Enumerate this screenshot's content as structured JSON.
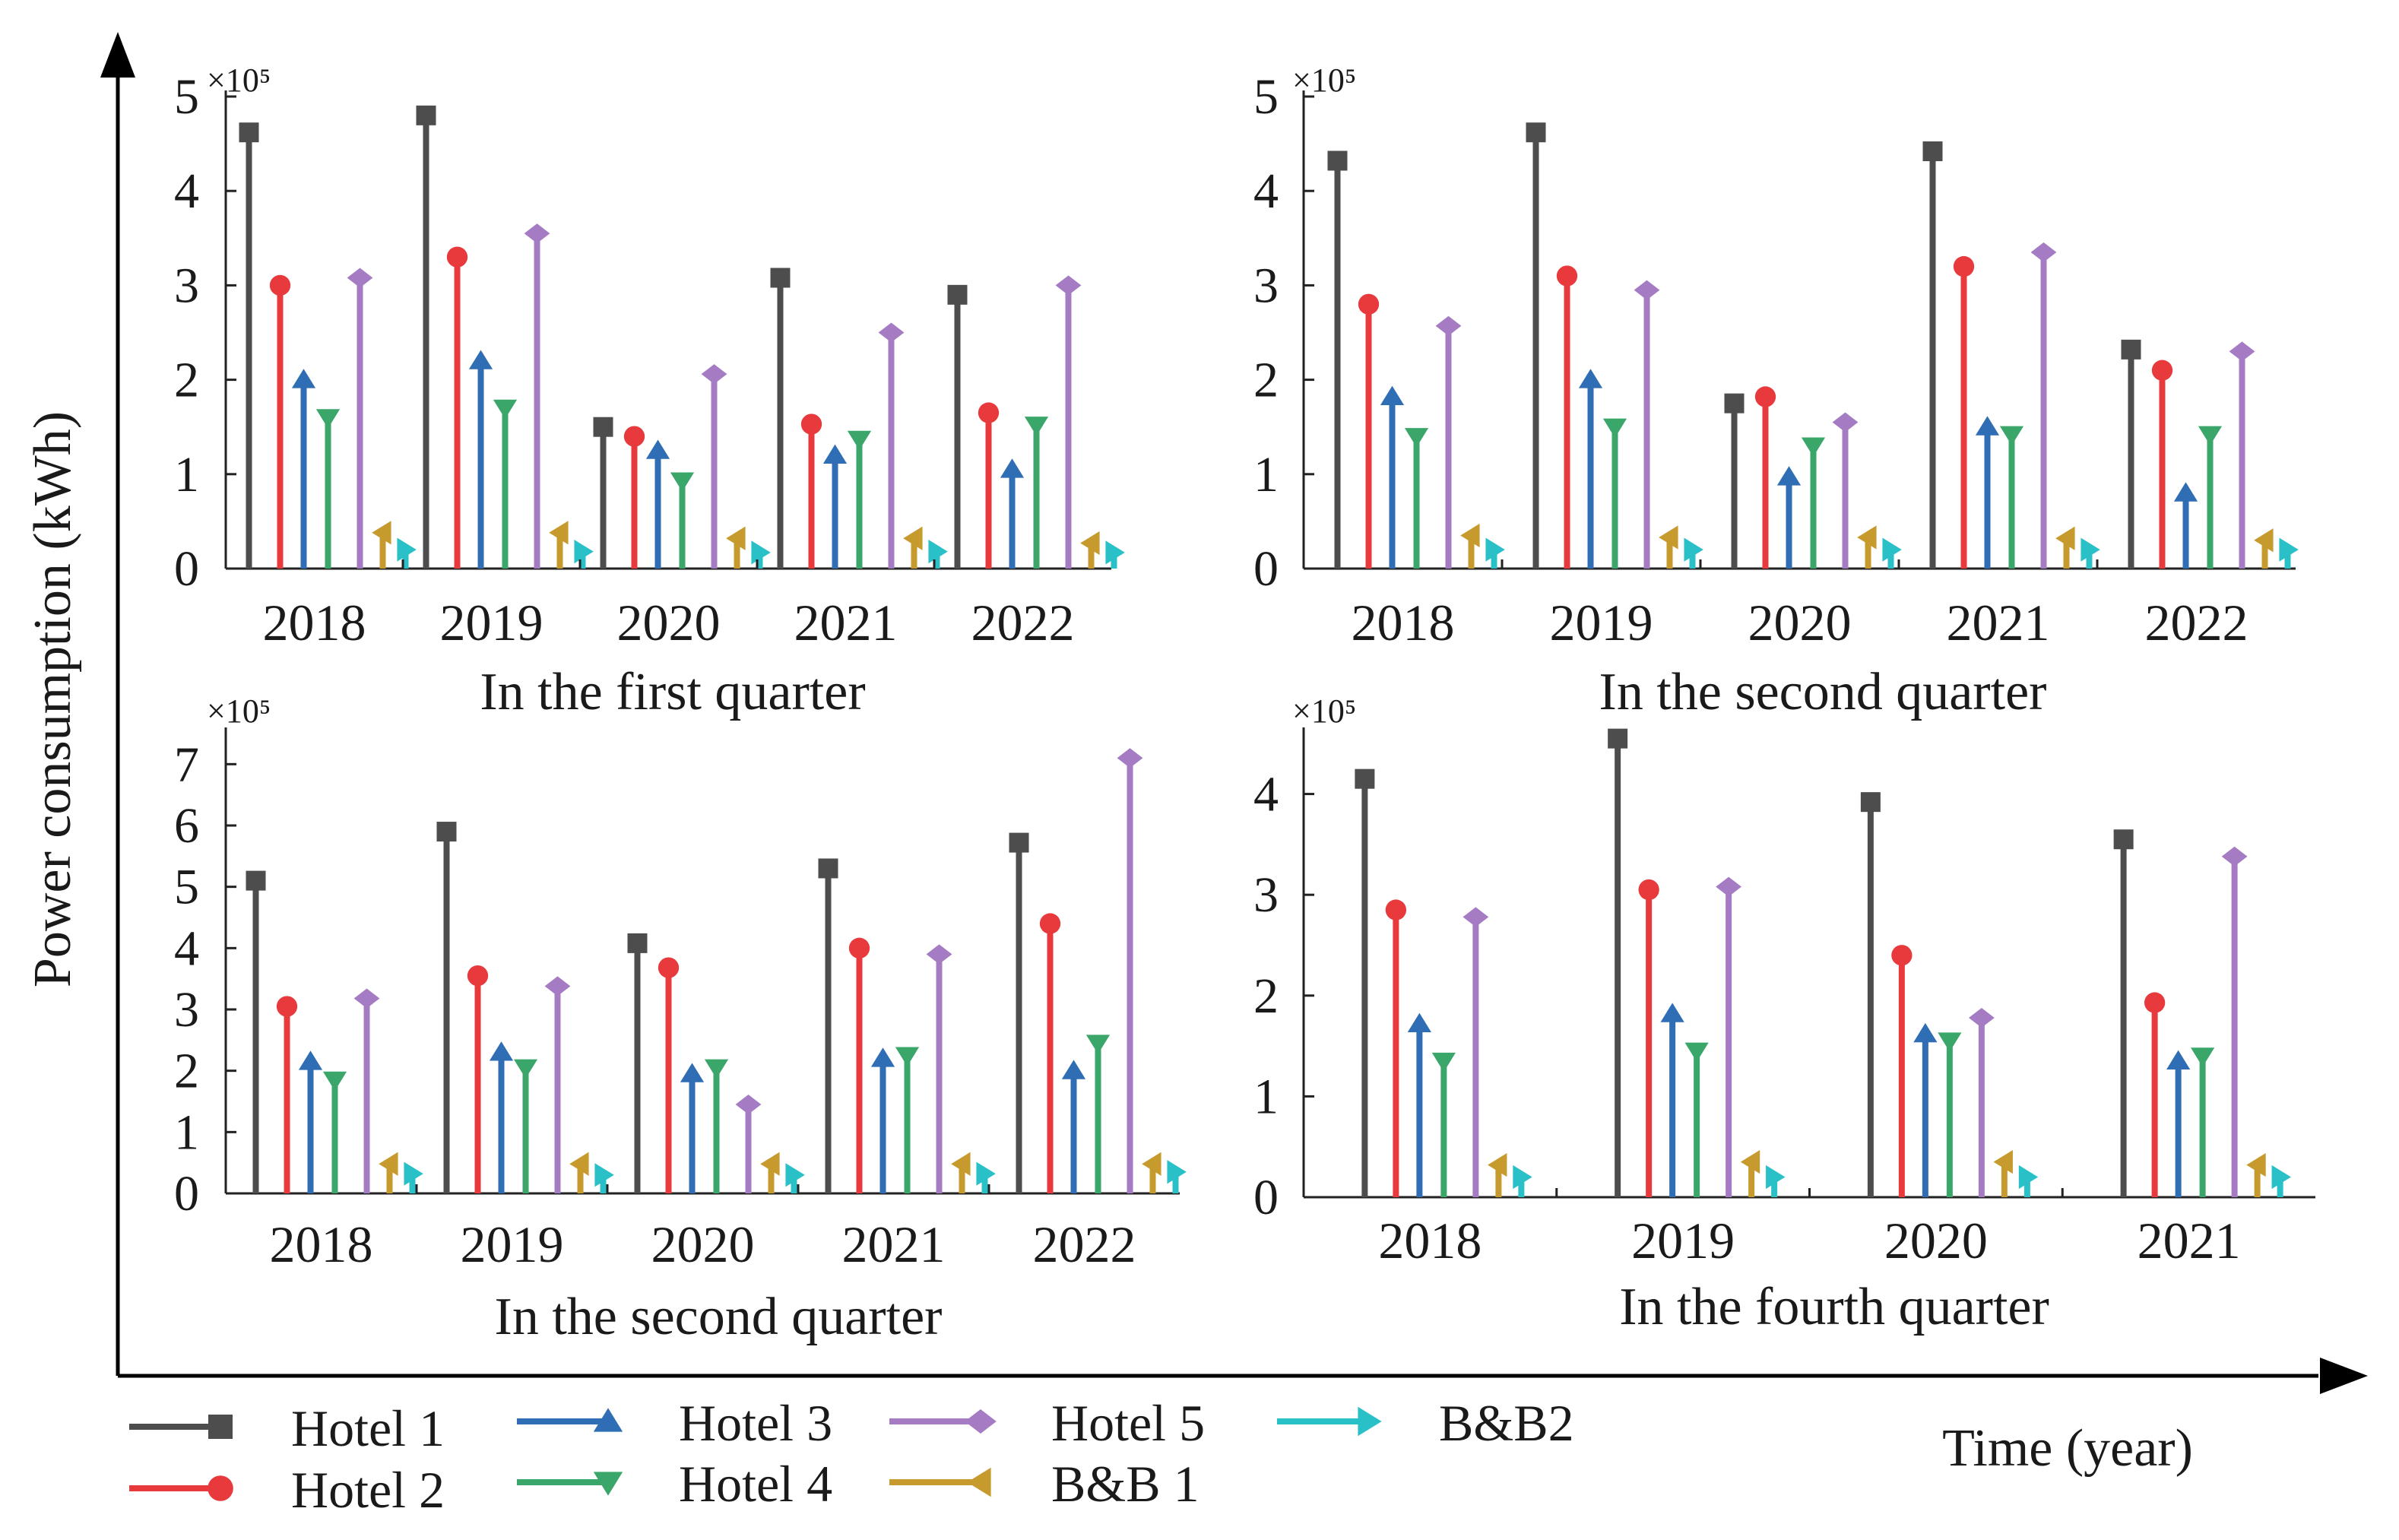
{
  "figure": {
    "y_axis_title": "Power consumption (kWh)",
    "x_axis_title": "Time (year)"
  },
  "legend": [
    {
      "name": "Hotel 1",
      "color": "#4d4d4d",
      "marker": "square-icon"
    },
    {
      "name": "Hotel 2",
      "color": "#e8393c",
      "marker": "circle-icon"
    },
    {
      "name": "Hotel 3",
      "color": "#2f6db5",
      "marker": "triangle-up-icon"
    },
    {
      "name": "Hotel 4",
      "color": "#3aa66a",
      "marker": "triangle-down-icon"
    },
    {
      "name": "Hotel 5",
      "color": "#a57cc4",
      "marker": "diamond-icon"
    },
    {
      "name": "B&B 1",
      "color": "#c79a2e",
      "marker": "triangle-left-icon"
    },
    {
      "name": "B&B2",
      "color": "#29c0c8",
      "marker": "triangle-right-icon"
    }
  ],
  "chart_data": [
    {
      "type": "bar",
      "title": "In the first quarter",
      "categories": [
        "2018",
        "2019",
        "2020",
        "2021",
        "2022"
      ],
      "exponent_label": "×10⁵",
      "ylim": [
        0,
        5
      ],
      "yticks": [
        0,
        1,
        2,
        3,
        4,
        5
      ],
      "ylabel": "Power consumption (kWh)",
      "xlabel": "Time (year)",
      "series": [
        {
          "name": "Hotel 1",
          "values": [
            4.62,
            4.8,
            1.5,
            3.08,
            2.9
          ]
        },
        {
          "name": "Hotel 2",
          "values": [
            3.0,
            3.3,
            1.4,
            1.53,
            1.65
          ]
        },
        {
          "name": "Hotel 3",
          "values": [
            2.0,
            2.2,
            1.25,
            1.2,
            1.05
          ]
        },
        {
          "name": "Hotel 4",
          "values": [
            1.6,
            1.7,
            0.93,
            1.37,
            1.52
          ]
        },
        {
          "name": "Hotel 5",
          "values": [
            3.08,
            3.55,
            2.06,
            2.5,
            3.0
          ]
        },
        {
          "name": "B&B 1",
          "values": [
            0.38,
            0.38,
            0.32,
            0.32,
            0.27
          ]
        },
        {
          "name": "B&B2",
          "values": [
            0.2,
            0.18,
            0.17,
            0.18,
            0.17
          ]
        }
      ]
    },
    {
      "type": "bar",
      "title": "In the second quarter",
      "categories": [
        "2018",
        "2019",
        "2020",
        "2021",
        "2022"
      ],
      "exponent_label": "×10⁵",
      "ylim": [
        0,
        5
      ],
      "yticks": [
        0,
        1,
        2,
        3,
        4,
        5
      ],
      "ylabel": "Power consumption (kWh)",
      "xlabel": "Time (year)",
      "series": [
        {
          "name": "Hotel 1",
          "values": [
            4.32,
            4.62,
            1.75,
            4.42,
            2.32
          ]
        },
        {
          "name": "Hotel 2",
          "values": [
            2.8,
            3.1,
            1.82,
            3.2,
            2.1
          ]
        },
        {
          "name": "Hotel 3",
          "values": [
            1.82,
            2.0,
            0.97,
            1.5,
            0.8
          ]
        },
        {
          "name": "Hotel 4",
          "values": [
            1.4,
            1.5,
            1.3,
            1.42,
            1.42
          ]
        },
        {
          "name": "Hotel 5",
          "values": [
            2.57,
            2.95,
            1.55,
            3.35,
            2.3
          ]
        },
        {
          "name": "B&B 1",
          "values": [
            0.35,
            0.33,
            0.33,
            0.32,
            0.3
          ]
        },
        {
          "name": "B&B2",
          "values": [
            0.2,
            0.2,
            0.2,
            0.2,
            0.2
          ]
        }
      ]
    },
    {
      "type": "bar",
      "title": "In the second quarter",
      "categories": [
        "2018",
        "2019",
        "2020",
        "2021",
        "2022"
      ],
      "exponent_label": "×10⁵",
      "ylim": [
        0,
        7.5
      ],
      "yticks": [
        0,
        1,
        2,
        3,
        4,
        5,
        6,
        7
      ],
      "ylabel": "Power consumption (kWh)",
      "xlabel": "Time (year)",
      "series": [
        {
          "name": "Hotel 1",
          "values": [
            5.1,
            5.9,
            4.08,
            5.3,
            5.72
          ]
        },
        {
          "name": "Hotel 2",
          "values": [
            3.05,
            3.55,
            3.68,
            4.0,
            4.4
          ]
        },
        {
          "name": "Hotel 3",
          "values": [
            2.15,
            2.3,
            1.95,
            2.2,
            2.0
          ]
        },
        {
          "name": "Hotel 4",
          "values": [
            1.85,
            2.05,
            2.05,
            2.25,
            2.45
          ]
        },
        {
          "name": "Hotel 5",
          "values": [
            3.18,
            3.38,
            1.45,
            3.9,
            7.1
          ]
        },
        {
          "name": "B&B 1",
          "values": [
            0.48,
            0.48,
            0.48,
            0.48,
            0.48
          ]
        },
        {
          "name": "B&B2",
          "values": [
            0.32,
            0.3,
            0.3,
            0.32,
            0.35
          ]
        }
      ]
    },
    {
      "type": "bar",
      "title": "In the fourth quarter",
      "categories": [
        "2018",
        "2019",
        "2020",
        "2021"
      ],
      "exponent_label": "×10⁵",
      "ylim": [
        0,
        4.6
      ],
      "yticks": [
        0,
        1,
        2,
        3,
        4
      ],
      "ylabel": "Power consumption (kWh)",
      "xlabel": "Time (year)",
      "series": [
        {
          "name": "Hotel 1",
          "values": [
            4.15,
            4.55,
            3.92,
            3.55
          ]
        },
        {
          "name": "Hotel 2",
          "values": [
            2.85,
            3.05,
            2.4,
            1.93
          ]
        },
        {
          "name": "Hotel 3",
          "values": [
            1.72,
            1.82,
            1.62,
            1.35
          ]
        },
        {
          "name": "Hotel 4",
          "values": [
            1.35,
            1.45,
            1.55,
            1.4
          ]
        },
        {
          "name": "Hotel 5",
          "values": [
            2.78,
            3.08,
            1.78,
            3.38
          ]
        },
        {
          "name": "B&B 1",
          "values": [
            0.32,
            0.35,
            0.35,
            0.32
          ]
        },
        {
          "name": "B&B2",
          "values": [
            0.2,
            0.2,
            0.2,
            0.2
          ]
        }
      ]
    }
  ]
}
